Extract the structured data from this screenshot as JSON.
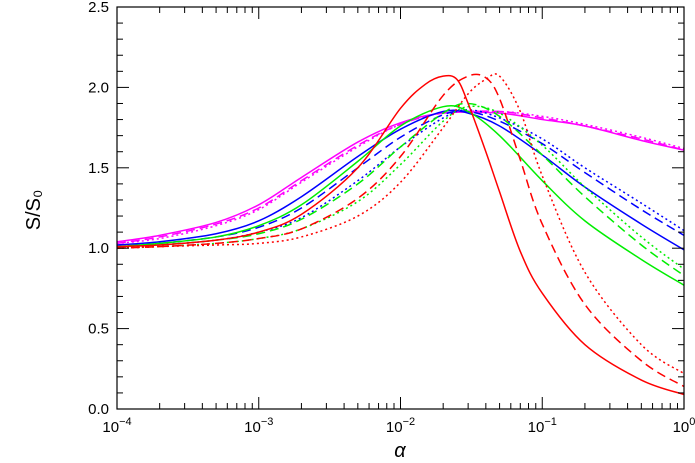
{
  "chart_data": {
    "type": "line",
    "xscale": "log",
    "xlim": [
      0.0001,
      1
    ],
    "ylim": [
      0,
      2.5
    ],
    "xlabel": "α",
    "ylabel": "S/S₀",
    "title": "",
    "grid": false,
    "legend": "none",
    "x_ticks": [
      {
        "value": 0.0001,
        "base": "10",
        "exp": "−4"
      },
      {
        "value": 0.001,
        "base": "10",
        "exp": "−3"
      },
      {
        "value": 0.01,
        "base": "10",
        "exp": "−2"
      },
      {
        "value": 0.1,
        "base": "10",
        "exp": "−1"
      },
      {
        "value": 1,
        "base": "10",
        "exp": "0"
      }
    ],
    "y_ticks": [
      {
        "value": 0,
        "label": "0.0"
      },
      {
        "value": 0.5,
        "label": "0.5"
      },
      {
        "value": 1,
        "label": "1.0"
      },
      {
        "value": 1.5,
        "label": "1.5"
      },
      {
        "value": 2,
        "label": "2.0"
      },
      {
        "value": 2.5,
        "label": "2.5"
      }
    ],
    "series": [
      {
        "color": "#ff00ff",
        "dash": "solid",
        "x": [
          0.0001,
          0.0002,
          0.0005,
          0.001,
          0.002,
          0.005,
          0.01,
          0.02,
          0.05,
          0.1,
          0.2,
          0.5,
          1
        ],
        "y": [
          1.04,
          1.08,
          1.16,
          1.27,
          1.44,
          1.66,
          1.78,
          1.84,
          1.84,
          1.8,
          1.76,
          1.67,
          1.61
        ]
      },
      {
        "color": "#ff00ff",
        "dash": "dashed",
        "x": [
          0.0001,
          0.0002,
          0.0005,
          0.001,
          0.002,
          0.005,
          0.01,
          0.02,
          0.05,
          0.1,
          0.2,
          0.5,
          1
        ],
        "y": [
          1.03,
          1.07,
          1.15,
          1.25,
          1.42,
          1.64,
          1.77,
          1.84,
          1.85,
          1.81,
          1.76,
          1.68,
          1.61
        ]
      },
      {
        "color": "#ff00ff",
        "dash": "dotted",
        "x": [
          0.0001,
          0.0002,
          0.0005,
          0.001,
          0.002,
          0.005,
          0.01,
          0.02,
          0.05,
          0.1,
          0.2,
          0.5,
          1
        ],
        "y": [
          1.03,
          1.06,
          1.14,
          1.24,
          1.41,
          1.63,
          1.77,
          1.84,
          1.85,
          1.82,
          1.77,
          1.69,
          1.62
        ]
      },
      {
        "color": "#0000ff",
        "dash": "solid",
        "x": [
          0.0001,
          0.0002,
          0.0005,
          0.001,
          0.002,
          0.005,
          0.01,
          0.02,
          0.03,
          0.05,
          0.1,
          0.2,
          0.5,
          1
        ],
        "y": [
          1.02,
          1.04,
          1.09,
          1.17,
          1.32,
          1.57,
          1.74,
          1.85,
          1.84,
          1.76,
          1.58,
          1.38,
          1.15,
          0.99
        ]
      },
      {
        "color": "#0000ff",
        "dash": "dashed",
        "x": [
          0.0001,
          0.0002,
          0.0005,
          0.001,
          0.002,
          0.005,
          0.01,
          0.02,
          0.03,
          0.05,
          0.1,
          0.2,
          0.5,
          1
        ],
        "y": [
          1.01,
          1.03,
          1.07,
          1.13,
          1.25,
          1.5,
          1.69,
          1.83,
          1.85,
          1.79,
          1.65,
          1.47,
          1.24,
          1.08
        ]
      },
      {
        "color": "#0000ff",
        "dash": "dotted",
        "x": [
          0.0001,
          0.0002,
          0.0005,
          0.001,
          0.002,
          0.005,
          0.01,
          0.02,
          0.03,
          0.05,
          0.1,
          0.2,
          0.5,
          1
        ],
        "y": [
          1.01,
          1.02,
          1.05,
          1.1,
          1.19,
          1.42,
          1.63,
          1.81,
          1.86,
          1.81,
          1.68,
          1.5,
          1.28,
          1.11
        ]
      },
      {
        "color": "#00ee00",
        "dash": "solid",
        "x": [
          0.0001,
          0.0002,
          0.0005,
          0.001,
          0.002,
          0.005,
          0.01,
          0.02,
          0.03,
          0.05,
          0.1,
          0.2,
          0.5,
          1
        ],
        "y": [
          1.01,
          1.03,
          1.07,
          1.14,
          1.27,
          1.54,
          1.76,
          1.88,
          1.85,
          1.7,
          1.42,
          1.17,
          0.93,
          0.77
        ]
      },
      {
        "color": "#00ee00",
        "dash": "dashed",
        "x": [
          0.0001,
          0.0002,
          0.0005,
          0.001,
          0.002,
          0.005,
          0.01,
          0.02,
          0.03,
          0.05,
          0.1,
          0.2,
          0.5,
          1
        ],
        "y": [
          1.01,
          1.02,
          1.05,
          1.09,
          1.18,
          1.4,
          1.63,
          1.84,
          1.9,
          1.82,
          1.58,
          1.32,
          1.02,
          0.83
        ]
      },
      {
        "color": "#00ee00",
        "dash": "dotted",
        "x": [
          0.0001,
          0.0002,
          0.0005,
          0.001,
          0.002,
          0.005,
          0.01,
          0.02,
          0.03,
          0.05,
          0.1,
          0.2,
          0.5,
          1
        ],
        "y": [
          1.0,
          1.01,
          1.03,
          1.06,
          1.12,
          1.29,
          1.52,
          1.79,
          1.88,
          1.84,
          1.64,
          1.38,
          1.07,
          0.87
        ]
      },
      {
        "color": "#ff0000",
        "dash": "solid",
        "x": [
          0.0001,
          0.0002,
          0.0005,
          0.001,
          0.002,
          0.005,
          0.01,
          0.015,
          0.02,
          0.025,
          0.03,
          0.04,
          0.05,
          0.07,
          0.1,
          0.2,
          0.5,
          1
        ],
        "y": [
          1.01,
          1.02,
          1.05,
          1.1,
          1.21,
          1.5,
          1.87,
          2.02,
          2.07,
          2.05,
          1.9,
          1.6,
          1.35,
          0.98,
          0.72,
          0.4,
          0.18,
          0.09
        ]
      },
      {
        "color": "#ff0000",
        "dash": "dashed",
        "x": [
          0.0001,
          0.0002,
          0.0005,
          0.001,
          0.002,
          0.005,
          0.01,
          0.02,
          0.03,
          0.04,
          0.05,
          0.07,
          0.1,
          0.2,
          0.5,
          1
        ],
        "y": [
          1.0,
          1.01,
          1.03,
          1.06,
          1.12,
          1.31,
          1.57,
          1.95,
          2.07,
          2.06,
          1.93,
          1.55,
          1.15,
          0.65,
          0.3,
          0.14
        ]
      },
      {
        "color": "#ff0000",
        "dash": "dotted",
        "x": [
          0.0001,
          0.0002,
          0.0005,
          0.001,
          0.002,
          0.005,
          0.01,
          0.02,
          0.03,
          0.04,
          0.05,
          0.07,
          0.1,
          0.2,
          0.5,
          1
        ],
        "y": [
          1.0,
          1.01,
          1.02,
          1.03,
          1.07,
          1.2,
          1.41,
          1.75,
          1.96,
          2.05,
          2.07,
          1.85,
          1.45,
          0.85,
          0.4,
          0.22
        ]
      }
    ]
  }
}
